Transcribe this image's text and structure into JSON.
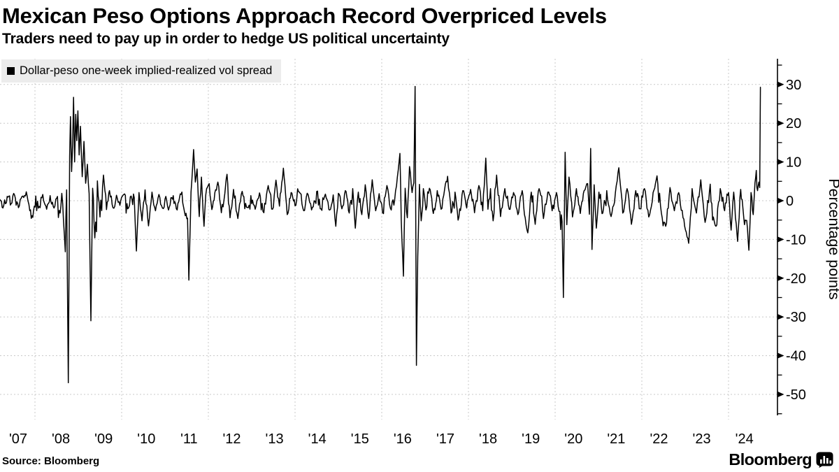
{
  "header": {
    "title": "Mexican Peso Options Approach Record Overpriced Levels",
    "subtitle": "Traders need to pay up in order to hedge US political uncertainty"
  },
  "legend": {
    "label": "Dollar-peso one-week implied-realized vol spread",
    "bg_color": "#ececec",
    "marker_color": "#000000"
  },
  "footer": {
    "source": "Source: Bloomberg",
    "brand": "Bloomberg"
  },
  "colors": {
    "line": "#000000",
    "grid": "#c8c8c8",
    "axis": "#000000",
    "text": "#000000",
    "background": "#ffffff"
  },
  "chart_data": {
    "type": "line",
    "series_name": "Dollar-peso one-week implied-realized vol spread",
    "ylabel": "Percentage points",
    "ylim": [
      -55,
      35
    ],
    "y_ticks_major": [
      30,
      20,
      10,
      0,
      -10,
      -20,
      -30,
      -40,
      -50
    ],
    "y_minor_step": 5,
    "x_tick_labels": [
      "'07",
      "'08",
      "'09",
      "'10",
      "'11",
      "'12",
      "'13",
      "'14",
      "'15",
      "'16",
      "'17",
      "'18",
      "'19",
      "'20",
      "'21",
      "'22",
      "'23",
      "'24"
    ],
    "x_gridline_years": [
      2008,
      2010,
      2012,
      2014,
      2016,
      2018,
      2020,
      2022,
      2024
    ],
    "xlim_years": [
      2007.19,
      2024.74
    ],
    "grid": true,
    "legend_position": "top-left",
    "latest_value": 29.3,
    "notable_extremes": [
      {
        "approx_year": 2007.95,
        "low": -4.3
      },
      {
        "approx_year": 2008.8,
        "low": -47,
        "high": 26.7
      },
      {
        "approx_year": 2009.3,
        "low": -31
      },
      {
        "approx_year": 2010.3,
        "low": -13
      },
      {
        "approx_year": 2011.6,
        "low": -20.5,
        "high": 13.2
      },
      {
        "approx_year": 2013.7,
        "high": 8.4
      },
      {
        "approx_year": 2015.4,
        "low": -7.1
      },
      {
        "approx_year": 2016.4,
        "high": 12.2,
        "low": -19.5
      },
      {
        "approx_year": 2016.8,
        "high": 29.5,
        "low": -42.5
      },
      {
        "approx_year": 2018.4,
        "high": 11
      },
      {
        "approx_year": 2019.4,
        "low": -8.3
      },
      {
        "approx_year": 2020.2,
        "low": -25,
        "high": 12.5
      },
      {
        "approx_year": 2020.8,
        "high": 13.5,
        "low": -12.6
      },
      {
        "approx_year": 2023.1,
        "low": -11
      },
      {
        "approx_year": 2024.2,
        "low": -10.5
      },
      {
        "approx_year": 2024.5,
        "low": -12.8
      },
      {
        "approx_year": 2024.7,
        "high": 29.3
      }
    ],
    "series": [
      {
        "name": "Dollar-peso one-week implied-realized vol spread",
        "anchors_year_value": [
          [
            2007.19,
            0.3
          ],
          [
            2007.28,
            -1.2
          ],
          [
            2007.36,
            1.1
          ],
          [
            2007.45,
            -0.8
          ],
          [
            2007.53,
            1.4
          ],
          [
            2007.62,
            -1.8
          ],
          [
            2007.72,
            1.2
          ],
          [
            2007.8,
            2.3
          ],
          [
            2007.88,
            -2.6
          ],
          [
            2007.95,
            -4.3
          ],
          [
            2008.02,
            1.2
          ],
          [
            2008.1,
            -1.5
          ],
          [
            2008.18,
            1.6
          ],
          [
            2008.27,
            -2.2
          ],
          [
            2008.35,
            1.3
          ],
          [
            2008.44,
            -1.9
          ],
          [
            2008.52,
            1.1
          ],
          [
            2008.58,
            -3.2
          ],
          [
            2008.62,
            1.9
          ],
          [
            2008.66,
            -5.5
          ],
          [
            2008.7,
            -13.2
          ],
          [
            2008.73,
            2.8
          ],
          [
            2008.77,
            -47
          ],
          [
            2008.8,
            11.5
          ],
          [
            2008.82,
            21.7
          ],
          [
            2008.845,
            7.5
          ],
          [
            2008.87,
            14.5
          ],
          [
            2008.89,
            26.7
          ],
          [
            2008.915,
            10
          ],
          [
            2008.94,
            22.3
          ],
          [
            2008.965,
            15.5
          ],
          [
            2008.99,
            23.2
          ],
          [
            2009.02,
            11.8
          ],
          [
            2009.05,
            19.2
          ],
          [
            2009.09,
            6.2
          ],
          [
            2009.13,
            15.3
          ],
          [
            2009.17,
            4.5
          ],
          [
            2009.21,
            9.4
          ],
          [
            2009.25,
            1.8
          ],
          [
            2009.29,
            -31
          ],
          [
            2009.33,
            3.2
          ],
          [
            2009.38,
            -9.6
          ],
          [
            2009.44,
            5.1
          ],
          [
            2009.5,
            -4.2
          ],
          [
            2009.58,
            6.6
          ],
          [
            2009.65,
            -2.3
          ],
          [
            2009.72,
            2.6
          ],
          [
            2009.8,
            -1.8
          ],
          [
            2009.88,
            1.4
          ],
          [
            2009.96,
            -1.2
          ],
          [
            2010.05,
            1.6
          ],
          [
            2010.14,
            -2.1
          ],
          [
            2010.22,
            1.2
          ],
          [
            2010.29,
            0.8
          ],
          [
            2010.34,
            -13
          ],
          [
            2010.4,
            2.1
          ],
          [
            2010.47,
            -5.2
          ],
          [
            2010.54,
            2.8
          ],
          [
            2010.62,
            -6.5
          ],
          [
            2010.7,
            2.2
          ],
          [
            2010.78,
            -2.6
          ],
          [
            2010.86,
            1.6
          ],
          [
            2010.94,
            -1.9
          ],
          [
            2011.02,
            1.1
          ],
          [
            2011.1,
            -1.6
          ],
          [
            2011.19,
            1.3
          ],
          [
            2011.28,
            -2.4
          ],
          [
            2011.37,
            1.6
          ],
          [
            2011.45,
            -2.9
          ],
          [
            2011.52,
            -4.5
          ],
          [
            2011.55,
            -20.5
          ],
          [
            2011.6,
            2.2
          ],
          [
            2011.66,
            13.2
          ],
          [
            2011.7,
            4.8
          ],
          [
            2011.74,
            8.2
          ],
          [
            2011.79,
            -4.1
          ],
          [
            2011.84,
            6.1
          ],
          [
            2011.9,
            -6.6
          ],
          [
            2011.96,
            3.1
          ],
          [
            2012.02,
            4.4
          ],
          [
            2012.08,
            -2.3
          ],
          [
            2012.15,
            2.1
          ],
          [
            2012.22,
            4.8
          ],
          [
            2012.3,
            -3.1
          ],
          [
            2012.38,
            1.9
          ],
          [
            2012.43,
            6.8
          ],
          [
            2012.5,
            -4.4
          ],
          [
            2012.58,
            2.9
          ],
          [
            2012.68,
            -4.6
          ],
          [
            2012.78,
            2.4
          ],
          [
            2012.88,
            -1.7
          ],
          [
            2012.98,
            1.3
          ],
          [
            2013.08,
            -2.2
          ],
          [
            2013.18,
            2
          ],
          [
            2013.28,
            -3.1
          ],
          [
            2013.38,
            3.9
          ],
          [
            2013.48,
            -2.2
          ],
          [
            2013.56,
            5.3
          ],
          [
            2013.64,
            -1.4
          ],
          [
            2013.73,
            8.4
          ],
          [
            2013.82,
            -3.6
          ],
          [
            2013.91,
            2.1
          ],
          [
            2014,
            -1.3
          ],
          [
            2014.1,
            2.2
          ],
          [
            2014.2,
            -2.6
          ],
          [
            2014.3,
            1.6
          ],
          [
            2014.4,
            -1.7
          ],
          [
            2014.5,
            2.4
          ],
          [
            2014.6,
            -2.1
          ],
          [
            2014.7,
            1.7
          ],
          [
            2014.8,
            -2.4
          ],
          [
            2014.88,
            1.5
          ],
          [
            2014.94,
            -6.6
          ],
          [
            2015,
            1.9
          ],
          [
            2015.08,
            -2.1
          ],
          [
            2015.16,
            2.6
          ],
          [
            2015.25,
            -3.2
          ],
          [
            2015.33,
            3.1
          ],
          [
            2015.39,
            -7.1
          ],
          [
            2015.46,
            2.2
          ],
          [
            2015.54,
            -3.6
          ],
          [
            2015.62,
            4.1
          ],
          [
            2015.7,
            -4.6
          ],
          [
            2015.78,
            5.4
          ],
          [
            2015.86,
            -2.6
          ],
          [
            2015.94,
            1.8
          ],
          [
            2016.02,
            -3.1
          ],
          [
            2016.12,
            3.9
          ],
          [
            2016.22,
            -2.4
          ],
          [
            2016.32,
            2.6
          ],
          [
            2016.42,
            12.2
          ],
          [
            2016.45,
            -5.1
          ],
          [
            2016.5,
            -19.5
          ],
          [
            2016.54,
            3.2
          ],
          [
            2016.59,
            -4.4
          ],
          [
            2016.64,
            8.8
          ],
          [
            2016.7,
            2.1
          ],
          [
            2016.74,
            4.6
          ],
          [
            2016.77,
            29.5
          ],
          [
            2016.8,
            -42.5
          ],
          [
            2016.83,
            -14.5
          ],
          [
            2016.87,
            4.2
          ],
          [
            2016.91,
            -5.2
          ],
          [
            2016.96,
            3.1
          ],
          [
            2017.02,
            -2.4
          ],
          [
            2017.1,
            3.2
          ],
          [
            2017.19,
            -3.3
          ],
          [
            2017.28,
            2.6
          ],
          [
            2017.37,
            -2.2
          ],
          [
            2017.45,
            2.9
          ],
          [
            2017.52,
            6.3
          ],
          [
            2017.6,
            -3.2
          ],
          [
            2017.69,
            2.2
          ],
          [
            2017.78,
            -4.2
          ],
          [
            2017.87,
            2.6
          ],
          [
            2017.96,
            -1.9
          ],
          [
            2018.05,
            2.9
          ],
          [
            2018.14,
            -3.1
          ],
          [
            2018.24,
            3.9
          ],
          [
            2018.33,
            -2.6
          ],
          [
            2018.4,
            11
          ],
          [
            2018.45,
            -2.2
          ],
          [
            2018.51,
            3.1
          ],
          [
            2018.57,
            -5.2
          ],
          [
            2018.65,
            6.6
          ],
          [
            2018.74,
            -4.1
          ],
          [
            2018.84,
            3.1
          ],
          [
            2018.94,
            -2.2
          ],
          [
            2019.04,
            2.1
          ],
          [
            2019.14,
            -3.6
          ],
          [
            2019.24,
            2.6
          ],
          [
            2019.31,
            -4.4
          ],
          [
            2019.37,
            -8.3
          ],
          [
            2019.45,
            2.2
          ],
          [
            2019.54,
            -6.1
          ],
          [
            2019.63,
            3.1
          ],
          [
            2019.73,
            -4.6
          ],
          [
            2019.83,
            2.2
          ],
          [
            2019.93,
            -2.6
          ],
          [
            2020.03,
            2.1
          ],
          [
            2020.11,
            -2.8
          ],
          [
            2020.16,
            -5.3
          ],
          [
            2020.19,
            -25
          ],
          [
            2020.23,
            12.5
          ],
          [
            2020.27,
            -6.2
          ],
          [
            2020.32,
            6.1
          ],
          [
            2020.4,
            -4.2
          ],
          [
            2020.49,
            3.1
          ],
          [
            2020.58,
            -3.3
          ],
          [
            2020.67,
            2.6
          ],
          [
            2020.75,
            4.4
          ],
          [
            2020.79,
            -3.5
          ],
          [
            2020.82,
            13.5
          ],
          [
            2020.85,
            -12.6
          ],
          [
            2020.9,
            4.1
          ],
          [
            2020.95,
            -7.1
          ],
          [
            2021.01,
            2.2
          ],
          [
            2021.1,
            -3.2
          ],
          [
            2021.19,
            2.6
          ],
          [
            2021.29,
            -4.1
          ],
          [
            2021.39,
            2.1
          ],
          [
            2021.47,
            8.5
          ],
          [
            2021.56,
            -3.2
          ],
          [
            2021.66,
            3.1
          ],
          [
            2021.76,
            -6.1
          ],
          [
            2021.86,
            2.6
          ],
          [
            2021.96,
            -2.1
          ],
          [
            2022.06,
            3.1
          ],
          [
            2022.16,
            -4.2
          ],
          [
            2022.26,
            2.1
          ],
          [
            2022.35,
            6.4
          ],
          [
            2022.45,
            -3.1
          ],
          [
            2022.55,
            -6.6
          ],
          [
            2022.65,
            3.4
          ],
          [
            2022.75,
            -2.6
          ],
          [
            2022.85,
            2.1
          ],
          [
            2022.95,
            -4.4
          ],
          [
            2023.08,
            -11
          ],
          [
            2023.16,
            3.1
          ],
          [
            2023.26,
            -3.2
          ],
          [
            2023.36,
            5.4
          ],
          [
            2023.46,
            -5.6
          ],
          [
            2023.56,
            2.4
          ],
          [
            2023.65,
            -4.2
          ],
          [
            2023.71,
            -6.6
          ],
          [
            2023.81,
            3.1
          ],
          [
            2023.91,
            -2.6
          ],
          [
            2024,
            2.1
          ],
          [
            2024.06,
            -7.6
          ],
          [
            2024.12,
            2.2
          ],
          [
            2024.16,
            -4.5
          ],
          [
            2024.21,
            -10.5
          ],
          [
            2024.28,
            2.9
          ],
          [
            2024.35,
            -4.2
          ],
          [
            2024.42,
            -5.1
          ],
          [
            2024.47,
            -12.8
          ],
          [
            2024.52,
            2.1
          ],
          [
            2024.57,
            -3.6
          ],
          [
            2024.61,
            4.6
          ],
          [
            2024.64,
            7.8
          ],
          [
            2024.67,
            2.6
          ],
          [
            2024.7,
            4.8
          ],
          [
            2024.72,
            3.4
          ],
          [
            2024.735,
            29.3
          ]
        ]
      }
    ],
    "noise": {
      "seed": 20241104,
      "samples_per_year": 52,
      "base_amplitude": 1.6,
      "amplitude_regions": [
        [
          2007.0,
          2008.55,
          1.35
        ],
        [
          2008.55,
          2009.7,
          2.6
        ],
        [
          2009.7,
          2011.35,
          1.5
        ],
        [
          2011.35,
          2012.3,
          2.0
        ],
        [
          2012.3,
          2016.25,
          1.6
        ],
        [
          2016.25,
          2017.3,
          2.1
        ],
        [
          2017.3,
          2019.9,
          1.7
        ],
        [
          2019.9,
          2021.1,
          2.0
        ],
        [
          2021.1,
          2024.75,
          1.65
        ]
      ],
      "downward_whisker_prob": 0.055,
      "downward_whisker_scale": 1.9,
      "upward_whisker_prob": 0.03,
      "upward_whisker_scale": 1.2
    }
  }
}
